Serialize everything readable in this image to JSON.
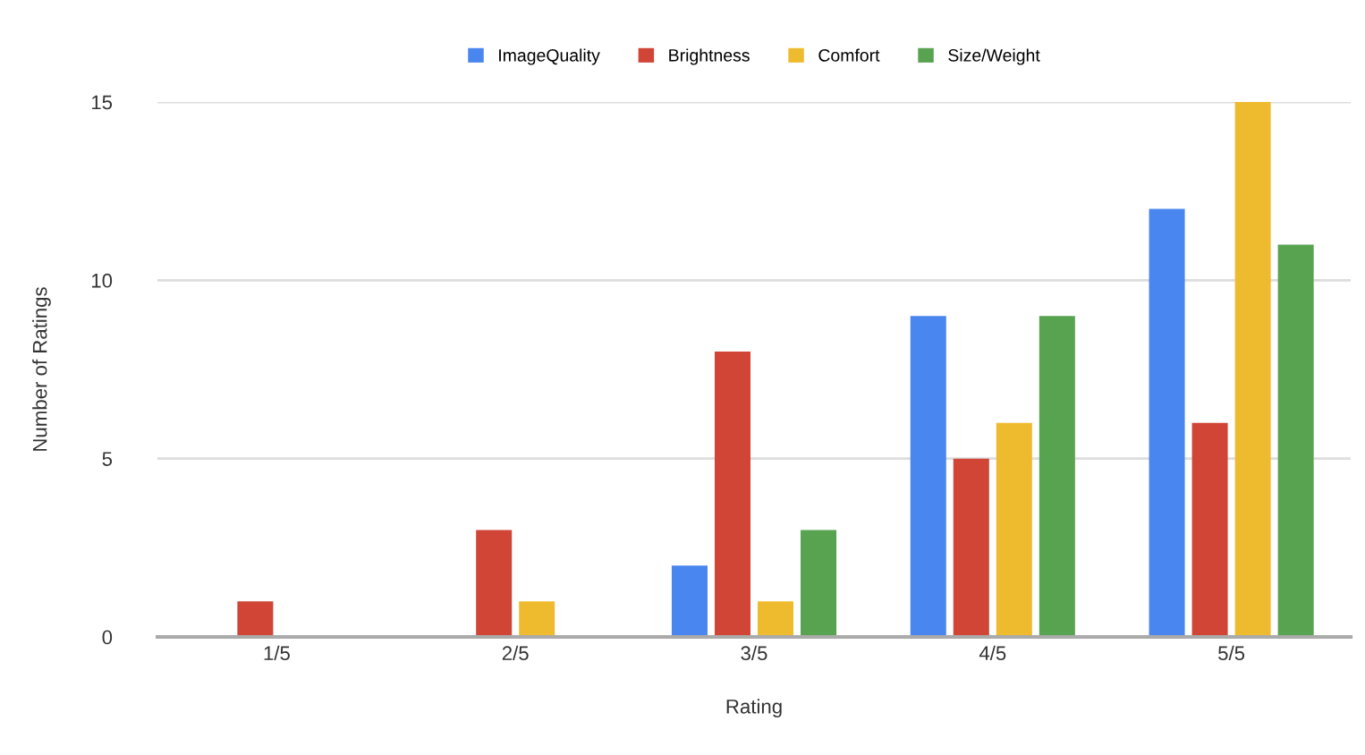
{
  "chart_data": {
    "type": "bar",
    "xlabel": "Rating",
    "ylabel": "Number of Ratings",
    "categories": [
      "1/5",
      "2/5",
      "3/5",
      "4/5",
      "5/5"
    ],
    "series": [
      {
        "name": "ImageQuality",
        "color": "#4a86ef",
        "values": [
          0,
          0,
          2,
          9,
          12
        ]
      },
      {
        "name": "Brightness",
        "color": "#d04535",
        "values": [
          1,
          3,
          8,
          5,
          6
        ]
      },
      {
        "name": "Comfort",
        "color": "#efbb2e",
        "values": [
          0,
          1,
          1,
          6,
          15
        ]
      },
      {
        "name": "Size/Weight",
        "color": "#57a350",
        "values": [
          0,
          0,
          3,
          9,
          11
        ]
      }
    ],
    "ylim": [
      0,
      15
    ],
    "yticks": [
      0,
      5,
      10,
      15
    ],
    "grid": "y",
    "legend": "top"
  }
}
